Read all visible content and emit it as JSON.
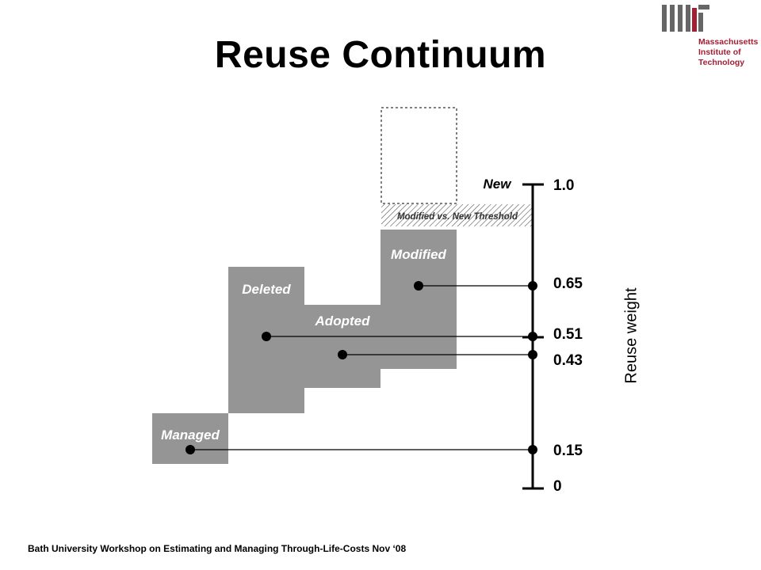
{
  "title": "Reuse Continuum",
  "footer": "Bath University Workshop on Estimating and Managing Through-Life-Costs  Nov ‘08",
  "logo": {
    "name": "mit-logo",
    "lines": [
      "Massachusetts",
      "Institute of",
      "Technology"
    ],
    "color": "#a31f34"
  },
  "axis": {
    "label": "Reuse weight",
    "new_label": "New",
    "threshold_label": "Modified vs. New Threshold"
  },
  "categories": [
    {
      "key": "managed",
      "label": "Managed",
      "weight_label": "0.15",
      "weight": 0.15
    },
    {
      "key": "deleted",
      "label": "Deleted",
      "weight_label": "0.51",
      "weight": 0.51
    },
    {
      "key": "adopted",
      "label": "Adopted",
      "weight_label": "0.43",
      "weight": 0.43
    },
    {
      "key": "modified",
      "label": "Modified",
      "weight_label": "0.65",
      "weight": 0.65
    }
  ],
  "ticks": [
    {
      "label": "1.0",
      "value": 1.0
    },
    {
      "label": "0",
      "value": 0
    }
  ],
  "colors": {
    "box": "#959595",
    "line": "#000000",
    "label": "#ffffff"
  }
}
